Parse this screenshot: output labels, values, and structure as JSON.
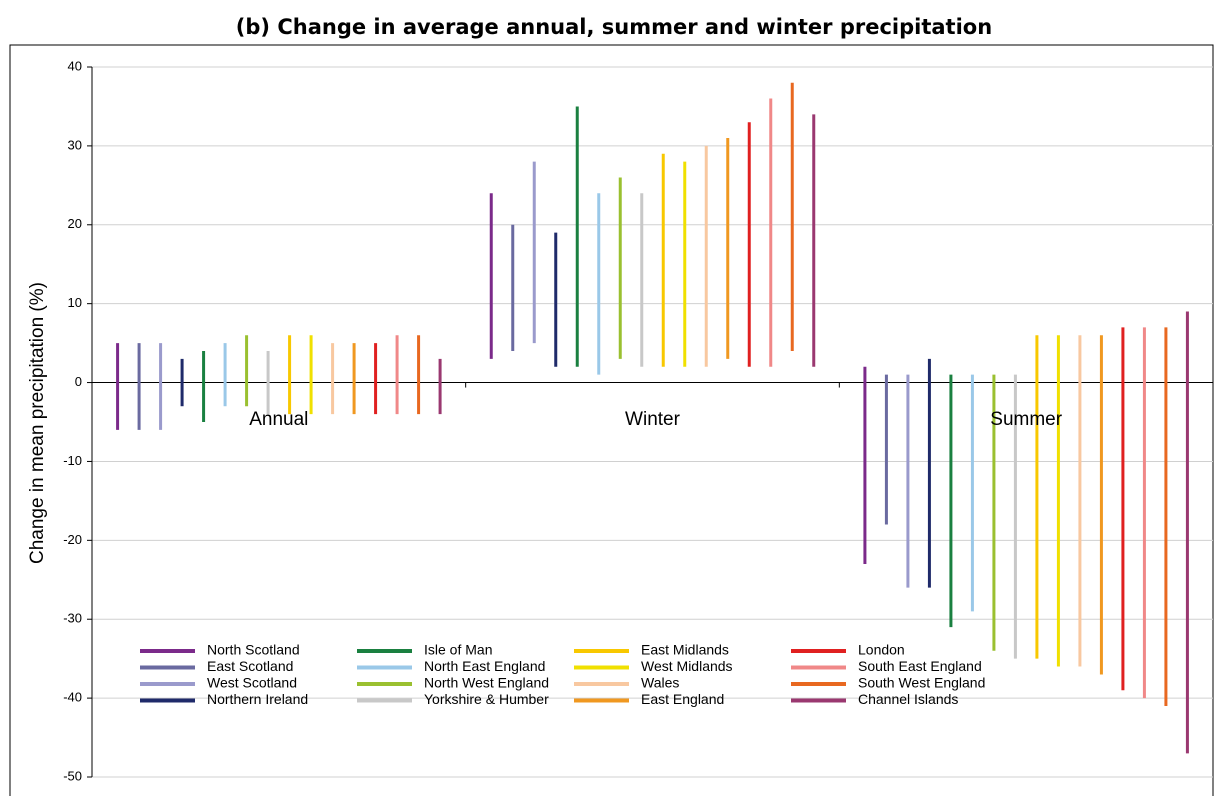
{
  "chart_data": {
    "type": "range-bar",
    "title": "(b) Change in average annual, summer and winter precipitation",
    "y_label": "Change in mean precipitation (%)",
    "categories": [
      "Annual",
      "Winter",
      "Summer"
    ],
    "ylim": [
      -50,
      40
    ],
    "yticks": [
      -50,
      -40,
      -30,
      -20,
      -10,
      0,
      10,
      20,
      30,
      40
    ],
    "grid": true,
    "series": [
      {
        "name": "North Scotland",
        "color": "#7b2a8a",
        "low": [
          -6,
          3,
          -23
        ],
        "high": [
          5,
          24,
          2
        ]
      },
      {
        "name": "East Scotland",
        "color": "#6a6aa0",
        "low": [
          -6,
          4,
          -18
        ],
        "high": [
          5,
          20,
          1
        ]
      },
      {
        "name": "West Scotland",
        "color": "#9a9acc",
        "low": [
          -6,
          5,
          -26
        ],
        "high": [
          5,
          28,
          1
        ]
      },
      {
        "name": "Northern Ireland",
        "color": "#1f2a6a",
        "low": [
          -3,
          2,
          -26
        ],
        "high": [
          3,
          19,
          3
        ]
      },
      {
        "name": "Isle of Man",
        "color": "#1a8040",
        "low": [
          -5,
          2,
          -31
        ],
        "high": [
          4,
          35,
          1
        ]
      },
      {
        "name": "North East England",
        "color": "#9ac8e8",
        "low": [
          -3,
          1,
          -29
        ],
        "high": [
          5,
          24,
          1
        ]
      },
      {
        "name": "North West England",
        "color": "#9ac030",
        "low": [
          -3,
          3,
          -34
        ],
        "high": [
          6,
          26,
          1
        ]
      },
      {
        "name": "Yorkshire & Humber",
        "color": "#c8c8c8",
        "low": [
          -4,
          2,
          -35
        ],
        "high": [
          4,
          24,
          1
        ]
      },
      {
        "name": "East Midlands",
        "color": "#f8c800",
        "low": [
          -4,
          2,
          -35
        ],
        "high": [
          6,
          29,
          6
        ]
      },
      {
        "name": "West Midlands",
        "color": "#f0e000",
        "low": [
          -4,
          2,
          -36
        ],
        "high": [
          6,
          28,
          6
        ]
      },
      {
        "name": "Wales",
        "color": "#f8c8a0",
        "low": [
          -4,
          2,
          -36
        ],
        "high": [
          5,
          30,
          6
        ]
      },
      {
        "name": "East England",
        "color": "#f09820",
        "low": [
          -4,
          3,
          -37
        ],
        "high": [
          5,
          31,
          6
        ]
      },
      {
        "name": "London",
        "color": "#e02020",
        "low": [
          -4,
          2,
          -39
        ],
        "high": [
          5,
          33,
          7
        ]
      },
      {
        "name": "South East England",
        "color": "#f08888",
        "low": [
          -4,
          2,
          -40
        ],
        "high": [
          6,
          36,
          7
        ]
      },
      {
        "name": "South West England",
        "color": "#e86820",
        "low": [
          -4,
          4,
          -41
        ],
        "high": [
          6,
          38,
          7
        ]
      },
      {
        "name": "Channel Islands",
        "color": "#9a3870",
        "low": [
          -4,
          2,
          -47
        ],
        "high": [
          3,
          34,
          9
        ]
      }
    ]
  }
}
